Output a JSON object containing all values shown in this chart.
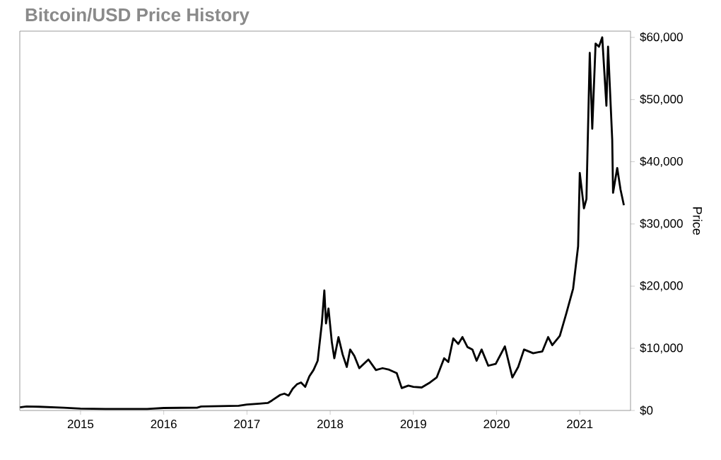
{
  "chart_data": {
    "type": "line",
    "title": "Bitcoin/USD Price History",
    "ylabel": "Price",
    "xlim": [
      2014.27,
      2021.61
    ],
    "ylim": [
      0,
      61000
    ],
    "xticks": [
      2015,
      2016,
      2017,
      2018,
      2019,
      2020,
      2021
    ],
    "yticks": [
      {
        "value": 0,
        "label": "$0"
      },
      {
        "value": 10000,
        "label": "$10,000"
      },
      {
        "value": 20000,
        "label": "$20,000"
      },
      {
        "value": 30000,
        "label": "$30,000"
      },
      {
        "value": 40000,
        "label": "$40,000"
      },
      {
        "value": 50000,
        "label": "$50,000"
      },
      {
        "value": 60000,
        "label": "$60,000"
      }
    ],
    "line_style": "solid",
    "series": [
      {
        "color": "#000000",
        "x": [
          2014.27,
          2014.35,
          2014.5,
          2014.8,
          2015.0,
          2015.3,
          2015.8,
          2016.0,
          2016.4,
          2016.45,
          2016.9,
          2017.0,
          2017.15,
          2017.25,
          2017.3,
          2017.4,
          2017.45,
          2017.5,
          2017.55,
          2017.6,
          2017.65,
          2017.7,
          2017.75,
          2017.8,
          2017.85,
          2017.9,
          2017.93,
          2017.95,
          2017.98,
          2018.02,
          2018.05,
          2018.1,
          2018.15,
          2018.2,
          2018.24,
          2018.29,
          2018.35,
          2018.46,
          2018.55,
          2018.63,
          2018.7,
          2018.8,
          2018.86,
          2018.94,
          2019.0,
          2019.1,
          2019.2,
          2019.28,
          2019.37,
          2019.42,
          2019.48,
          2019.54,
          2019.59,
          2019.65,
          2019.71,
          2019.76,
          2019.82,
          2019.9,
          2019.99,
          2020.1,
          2020.19,
          2020.26,
          2020.33,
          2020.44,
          2020.55,
          2020.62,
          2020.67,
          2020.76,
          2020.84,
          2020.92,
          2020.98,
          2021.0,
          2021.05,
          2021.08,
          2021.12,
          2021.15,
          2021.19,
          2021.23,
          2021.27,
          2021.32,
          2021.34,
          2021.39,
          2021.4,
          2021.45,
          2021.49,
          2021.53
        ],
        "values": [
          500,
          650,
          600,
          450,
          300,
          250,
          250,
          400,
          450,
          650,
          750,
          950,
          1100,
          1200,
          1600,
          2500,
          2700,
          2400,
          3500,
          4200,
          4500,
          3800,
          5500,
          6500,
          8000,
          14000,
          19300,
          14000,
          16400,
          11000,
          8400,
          11800,
          9000,
          7000,
          9800,
          8800,
          6800,
          8200,
          6500,
          6800,
          6600,
          6000,
          3600,
          4000,
          3800,
          3700,
          4500,
          5300,
          8400,
          7800,
          11600,
          10700,
          11800,
          10200,
          9800,
          8000,
          9800,
          7200,
          7500,
          10300,
          5300,
          7000,
          9800,
          9200,
          9500,
          11800,
          10500,
          12000,
          15700,
          19600,
          26400,
          38200,
          32500,
          34000,
          57500,
          45300,
          59000,
          58500,
          60000,
          49000,
          58500,
          43500,
          35000,
          39000,
          35500,
          33000
        ]
      }
    ]
  }
}
